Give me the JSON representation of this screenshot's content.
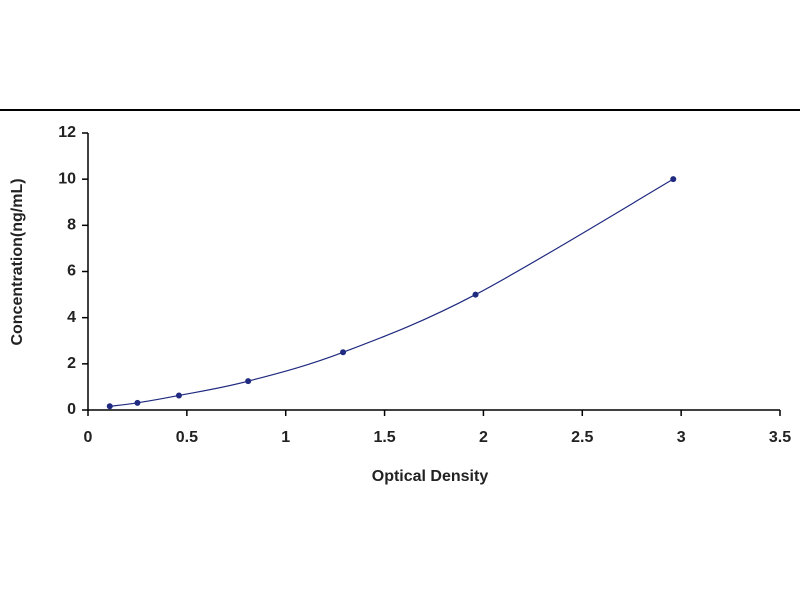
{
  "chart_data": {
    "type": "scatter",
    "xlabel": "Optical Density",
    "ylabel": "Concentration(ng/mL)",
    "x": [
      0.11,
      0.25,
      0.46,
      0.81,
      1.29,
      1.96,
      2.96
    ],
    "values": [
      0.16,
      0.31,
      0.63,
      1.25,
      2.5,
      5,
      10
    ],
    "color": "#1f2a80",
    "line": true,
    "xlim": [
      0,
      3.5
    ],
    "xticks": [
      0,
      0.5,
      1,
      1.5,
      2,
      2.5,
      3,
      3.5
    ],
    "ylim": [
      0,
      12
    ],
    "yticks": [
      0,
      2,
      4,
      6,
      8,
      10,
      12
    ],
    "grid": false
  }
}
